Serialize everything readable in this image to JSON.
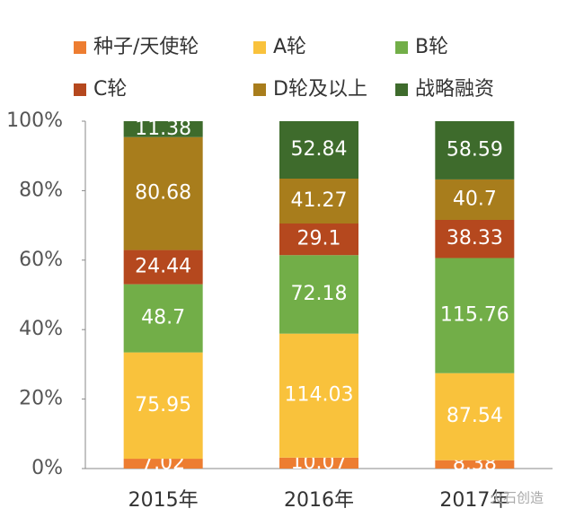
{
  "chart_data": {
    "type": "stacked_percent_bar",
    "categories": [
      "2015年",
      "2016年",
      "2017年"
    ],
    "series": [
      {
        "name": "种子/天使轮",
        "color": "#ed7d31",
        "values": [
          7.02,
          10.07,
          8.38
        ]
      },
      {
        "name": "A轮",
        "color": "#f9c23c",
        "values": [
          75.95,
          114.03,
          87.54
        ]
      },
      {
        "name": "B轮",
        "color": "#72ae48",
        "values": [
          48.7,
          72.18,
          115.76
        ]
      },
      {
        "name": "C轮",
        "color": "#b5481e",
        "values": [
          24.44,
          29.1,
          38.33
        ]
      },
      {
        "name": "D轮及以上",
        "color": "#a87d1c",
        "values": [
          80.68,
          41.27,
          40.7
        ]
      },
      {
        "name": "战略融资",
        "color": "#3e6b2c",
        "values": [
          11.38,
          52.84,
          58.59
        ]
      }
    ],
    "ylim": [
      0,
      100
    ],
    "yticks": [
      {
        "value": 0,
        "label": "0%"
      },
      {
        "value": 20,
        "label": "20%"
      },
      {
        "value": 40,
        "label": "40%"
      },
      {
        "value": 60,
        "label": "60%"
      },
      {
        "value": 80,
        "label": "80%"
      },
      {
        "value": 100,
        "label": "100%"
      }
    ],
    "watermark": "火石创造"
  }
}
